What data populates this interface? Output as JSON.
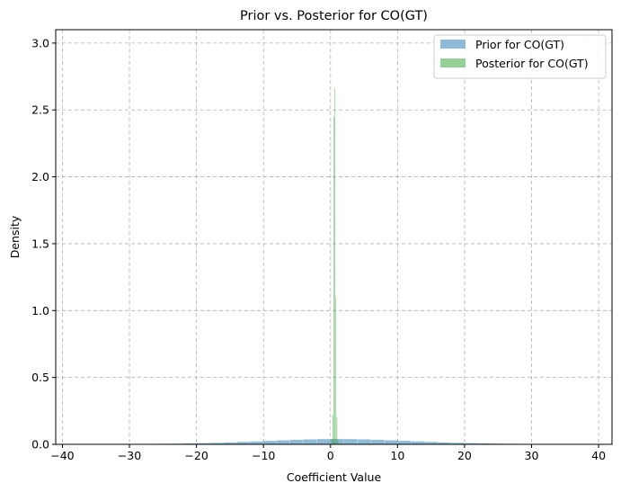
{
  "chart_data": {
    "type": "bar",
    "title": "Prior vs. Posterior for CO(GT)",
    "xlabel": "Coefficient Value",
    "ylabel": "Density",
    "xlim": [
      -41,
      42
    ],
    "ylim": [
      0,
      3.1
    ],
    "xticks": [
      -40,
      -30,
      -20,
      -10,
      0,
      10,
      20,
      30,
      40
    ],
    "yticks": [
      0.0,
      0.5,
      1.0,
      1.5,
      2.0,
      2.5,
      3.0
    ],
    "xtick_labels": [
      "−40",
      "−30",
      "−20",
      "−10",
      "0",
      "10",
      "20",
      "30",
      "40"
    ],
    "ytick_labels": [
      "0.0",
      "0.5",
      "1.0",
      "1.5",
      "2.0",
      "2.5",
      "3.0"
    ],
    "grid": true,
    "legend_position": "top-right",
    "series": [
      {
        "name": "Prior for CO(GT)",
        "color": "#1f77b4",
        "opacity": 0.5,
        "bins": [
          [
            -38,
            -36,
            0.001
          ],
          [
            -36,
            -34,
            0.001
          ],
          [
            -34,
            -32,
            0.001
          ],
          [
            -32,
            -30,
            0.002
          ],
          [
            -30,
            -28,
            0.002
          ],
          [
            -28,
            -26,
            0.003
          ],
          [
            -26,
            -24,
            0.004
          ],
          [
            -24,
            -22,
            0.005
          ],
          [
            -22,
            -20,
            0.007
          ],
          [
            -20,
            -18,
            0.009
          ],
          [
            -18,
            -16,
            0.011
          ],
          [
            -16,
            -14,
            0.014
          ],
          [
            -14,
            -12,
            0.018
          ],
          [
            -12,
            -10,
            0.022
          ],
          [
            -10,
            -8,
            0.026
          ],
          [
            -8,
            -6,
            0.03
          ],
          [
            -6,
            -4,
            0.034
          ],
          [
            -4,
            -2,
            0.037
          ],
          [
            -2,
            0,
            0.039
          ],
          [
            0,
            2,
            0.04
          ],
          [
            2,
            4,
            0.039
          ],
          [
            4,
            6,
            0.037
          ],
          [
            6,
            8,
            0.034
          ],
          [
            8,
            10,
            0.03
          ],
          [
            10,
            12,
            0.026
          ],
          [
            12,
            14,
            0.022
          ],
          [
            14,
            16,
            0.018
          ],
          [
            16,
            18,
            0.014
          ],
          [
            18,
            20,
            0.011
          ],
          [
            20,
            22,
            0.009
          ],
          [
            22,
            24,
            0.007
          ],
          [
            24,
            26,
            0.005
          ],
          [
            26,
            28,
            0.004
          ],
          [
            28,
            30,
            0.003
          ],
          [
            30,
            32,
            0.002
          ],
          [
            32,
            34,
            0.002
          ],
          [
            34,
            36,
            0.001
          ],
          [
            36,
            38,
            0.001
          ]
        ]
      },
      {
        "name": "Posterior for CO(GT)",
        "color": "#2ca02c",
        "opacity": 0.5,
        "bins": [
          [
            0.15,
            0.3,
            0.04
          ],
          [
            0.3,
            0.45,
            0.22
          ],
          [
            0.45,
            0.6,
            2.45
          ],
          [
            0.6,
            0.75,
            2.66
          ],
          [
            0.75,
            0.9,
            1.1
          ],
          [
            0.9,
            1.05,
            0.2
          ],
          [
            1.05,
            1.2,
            0.03
          ]
        ]
      }
    ]
  }
}
